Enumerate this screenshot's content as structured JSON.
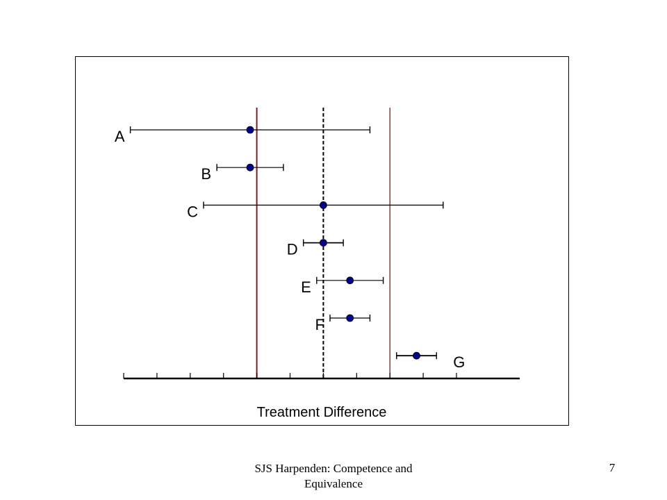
{
  "footer": {
    "text": "SJS Harpenden: Competence and Equivalence",
    "page_number": "7"
  },
  "colors": {
    "point": "#00008B",
    "margin_line": "#7B1E1E",
    "axis": "#000000",
    "reference_line": "#000000"
  },
  "chart_data": {
    "type": "forest",
    "title": "",
    "xlabel": "Treatment Difference",
    "ylabel": "",
    "xlim": [
      -6,
      5.9
    ],
    "tick_values": [
      -6,
      -5,
      -4,
      -3,
      -2,
      -1,
      0,
      1,
      2,
      3,
      4
    ],
    "reference_line": 0,
    "equivalence_margins": [
      -2,
      2
    ],
    "grid": false,
    "studies": [
      {
        "label": "A",
        "estimate": -2.2,
        "lower": -5.8,
        "upper": 1.4
      },
      {
        "label": "B",
        "estimate": -2.2,
        "lower": -3.2,
        "upper": -1.2
      },
      {
        "label": "C",
        "estimate": 0.0,
        "lower": -3.6,
        "upper": 3.6
      },
      {
        "label": "D",
        "estimate": 0.0,
        "lower": -0.6,
        "upper": 0.6
      },
      {
        "label": "E",
        "estimate": 0.8,
        "lower": -0.2,
        "upper": 1.8
      },
      {
        "label": "F",
        "estimate": 0.8,
        "lower": 0.2,
        "upper": 1.4
      },
      {
        "label": "G",
        "estimate": 2.8,
        "lower": 2.2,
        "upper": 3.4
      }
    ]
  }
}
